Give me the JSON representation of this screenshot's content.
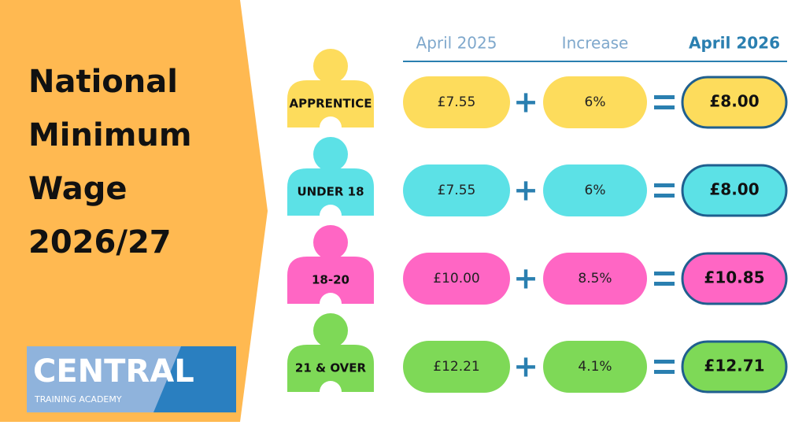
{
  "title_lines": [
    "National",
    "Minimum",
    "Wage",
    "2026/27"
  ],
  "columns": [
    "April 2025",
    "Increase",
    "April 2026"
  ],
  "rows": [
    {
      "label": "APPRENTICE",
      "april_2025": "£7.55",
      "increase": "6%",
      "april_2026": "£8.00",
      "color": "#fddc5c"
    },
    {
      "label": "UNDER 18",
      "april_2025": "£7.55",
      "increase": "6%",
      "april_2026": "£8.00",
      "color": "#5ce1e6"
    },
    {
      "label": "18-20",
      "april_2025": "£10.00",
      "increase": "8.5%",
      "april_2026": "£10.85",
      "color": "#ff66c4"
    },
    {
      "label": "21 & OVER",
      "april_2025": "£12.21",
      "increase": "4.1%",
      "april_2026": "£12.71",
      "color": "#7ed957"
    }
  ],
  "logo": {
    "name": "CENTRAL",
    "subtitle": "TRAINING ACADEMY"
  }
}
